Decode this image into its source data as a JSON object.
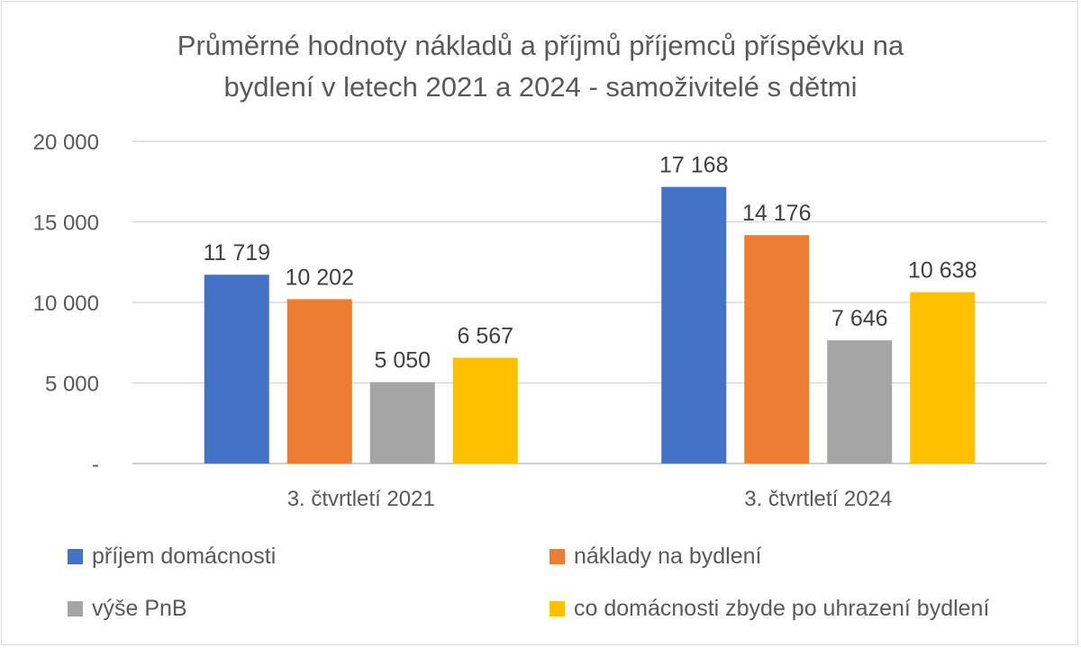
{
  "chart_data": {
    "type": "bar",
    "title_lines": [
      "Průměrné hodnoty nákladů a příjmů příjemců příspěvku na",
      "bydlení v letech 2021 a 2024 - samoživitelé s dětmi"
    ],
    "categories": [
      "3. čtvrtletí 2021",
      "3. čtvrtletí 2024"
    ],
    "series": [
      {
        "name": "příjem domácnosti",
        "color": "#4472C4",
        "values": [
          11719,
          17168
        ],
        "labels": [
          "11 719",
          "17 168"
        ]
      },
      {
        "name": "náklady na bydlení",
        "color": "#ED7D31",
        "values": [
          10202,
          14176
        ],
        "labels": [
          "10 202",
          "14 176"
        ]
      },
      {
        "name": "výše PnB",
        "color": "#A5A5A5",
        "values": [
          5050,
          7646
        ],
        "labels": [
          "5 050",
          "7 646"
        ]
      },
      {
        "name": "co domácnosti zbyde po uhrazení bydlení",
        "color": "#FFC000",
        "values": [
          6567,
          10638
        ],
        "labels": [
          "6 567",
          "10 638"
        ]
      }
    ],
    "y_ticks": [
      {
        "value": 0,
        "label": "-"
      },
      {
        "value": 5000,
        "label": "5 000"
      },
      {
        "value": 10000,
        "label": "10 000"
      },
      {
        "value": 15000,
        "label": "15 000"
      },
      {
        "value": 20000,
        "label": "20 000"
      }
    ],
    "ylim": [
      0,
      20000
    ],
    "grid": true,
    "legend_position": "bottom"
  }
}
